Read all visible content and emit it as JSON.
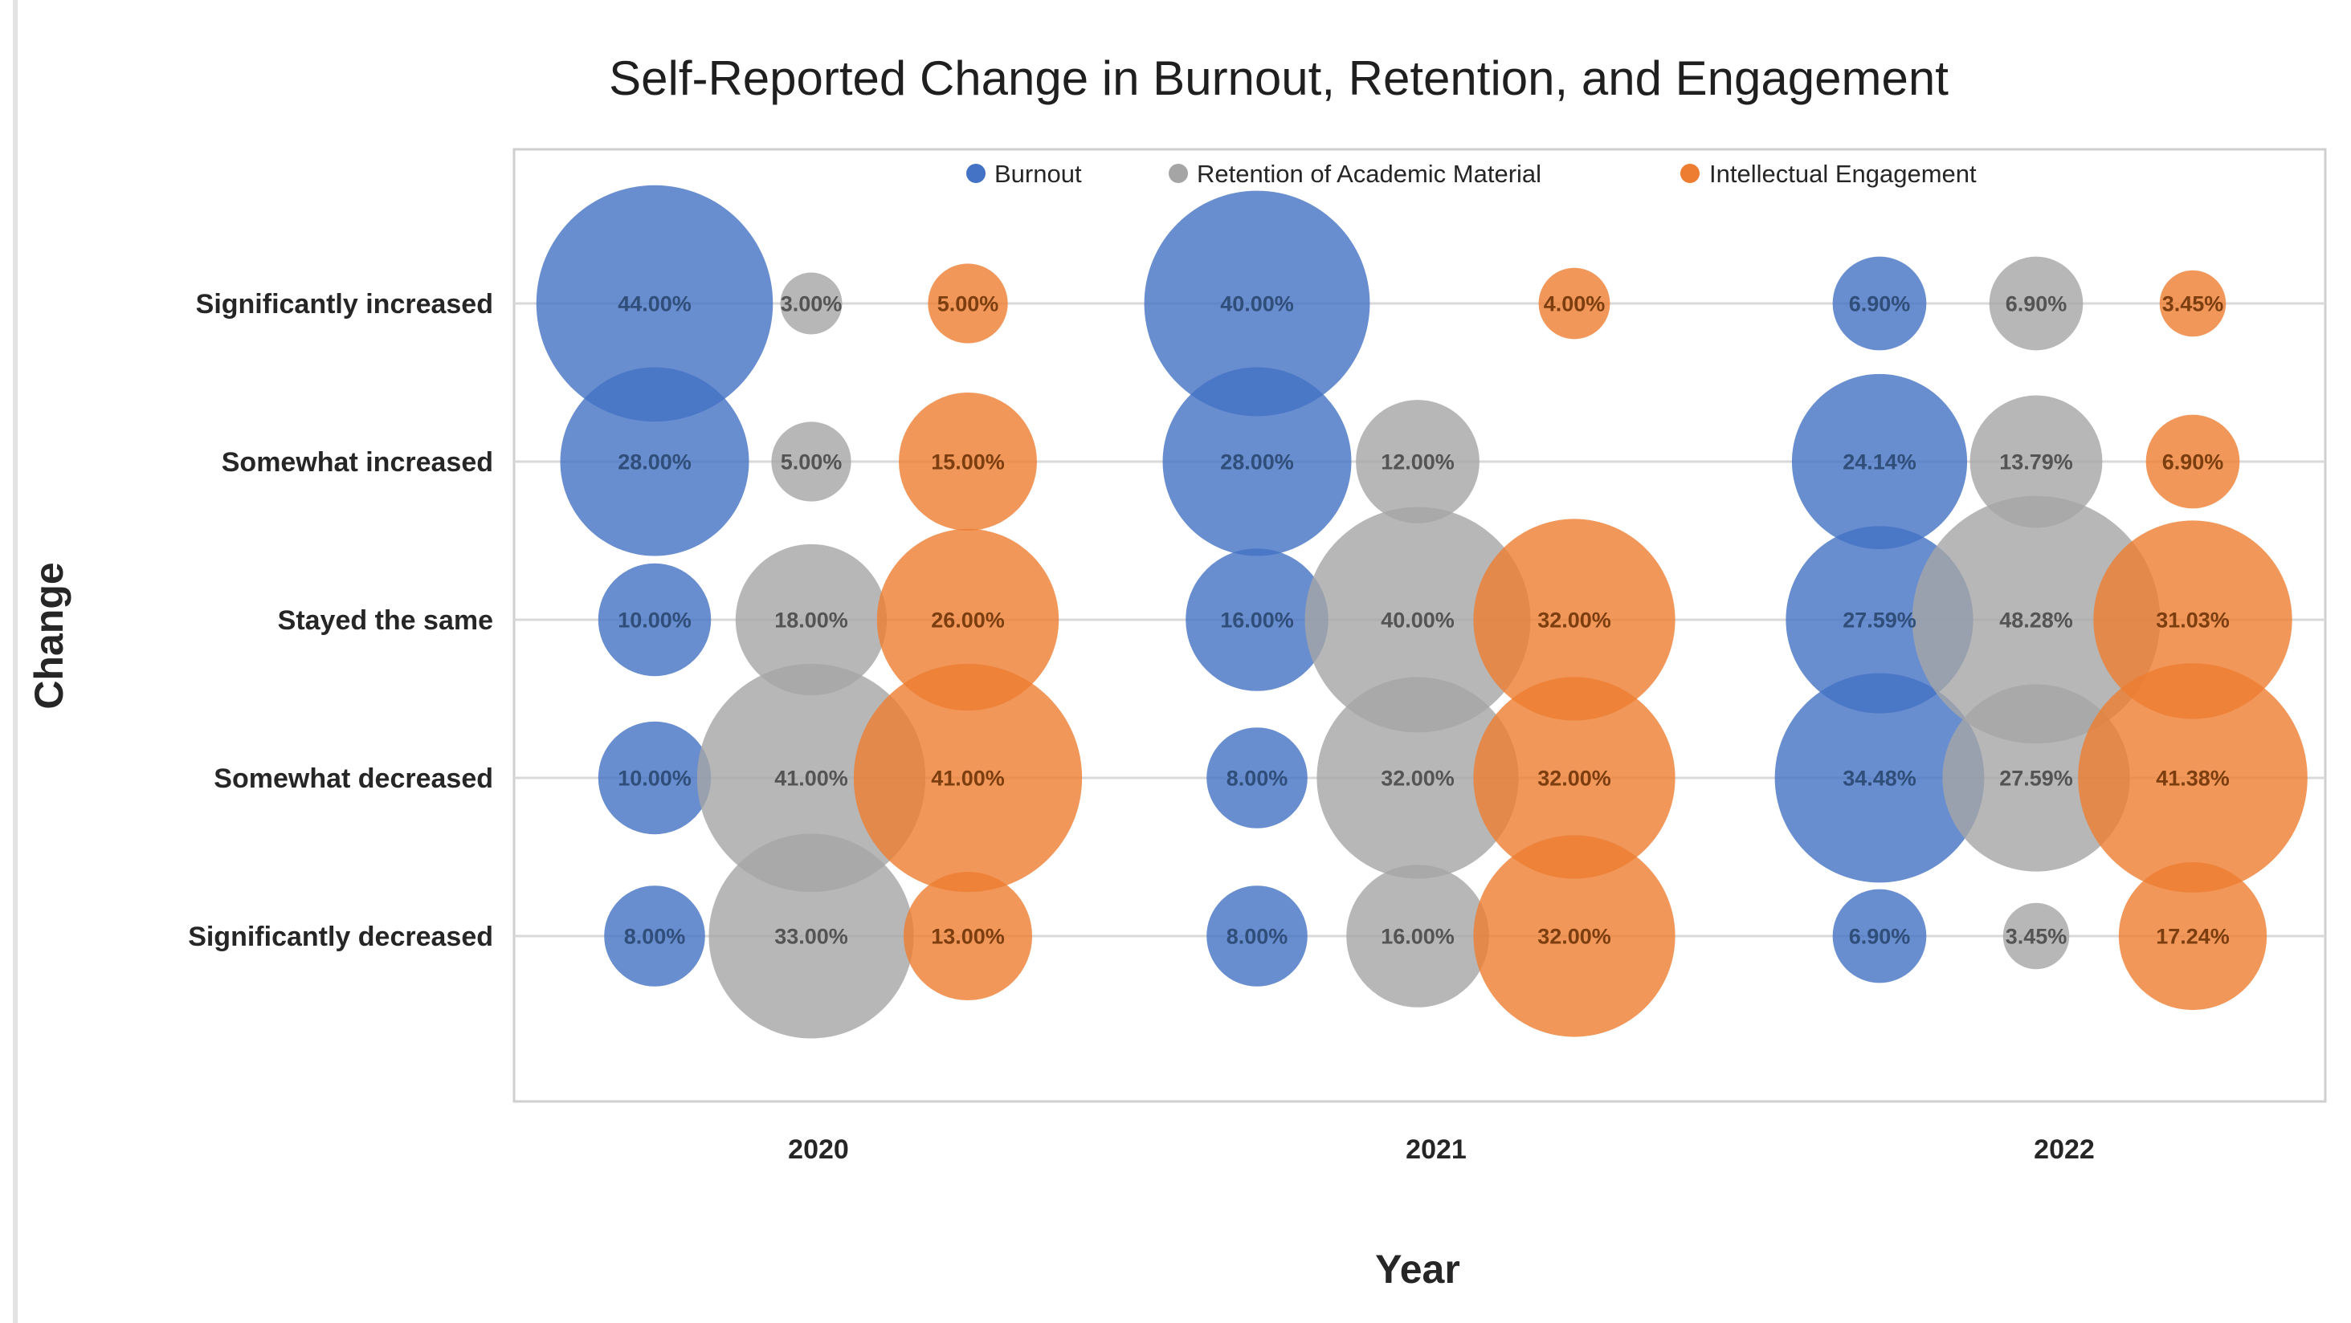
{
  "window": {
    "background": "#ffffff",
    "edge_color": "#e3e3e3"
  },
  "chart_data": {
    "type": "bubble",
    "title": "Self-Reported Change in Burnout, Retention, and Engagement",
    "xlabel": "Year",
    "ylabel": "Change",
    "categories": [
      "Significantly increased",
      "Somewhat increased",
      "Stayed the same",
      "Somewhat decreased",
      "Significantly decreased"
    ],
    "years": [
      "2020",
      "2021",
      "2022"
    ],
    "legend_position": "top-inside",
    "grid": "horizontal-category-lines",
    "value_label_format": "0.00%",
    "bubble_fill_opacity": 0.8,
    "gridline_color": "#d9d9d9",
    "series": [
      {
        "name": "Burnout",
        "color": "#4472C4",
        "label_color": "#2F4E79",
        "values_by_year": [
          [
            44.0,
            28.0,
            10.0,
            10.0,
            8.0
          ],
          [
            40.0,
            28.0,
            16.0,
            8.0,
            8.0
          ],
          [
            6.9,
            24.14,
            27.59,
            34.48,
            6.9
          ]
        ]
      },
      {
        "name": "Retention of Academic Material",
        "color": "#A5A5A5",
        "label_color": "#545454",
        "values_by_year": [
          [
            3.0,
            5.0,
            18.0,
            41.0,
            33.0
          ],
          [
            null,
            12.0,
            40.0,
            32.0,
            16.0
          ],
          [
            6.9,
            13.79,
            48.28,
            27.59,
            3.45
          ]
        ]
      },
      {
        "name": "Intellectual Engagement",
        "color": "#ED7D31",
        "label_color": "#7C3E0F",
        "values_by_year": [
          [
            5.0,
            15.0,
            26.0,
            41.0,
            13.0
          ],
          [
            4.0,
            null,
            32.0,
            32.0,
            32.0
          ],
          [
            3.45,
            6.9,
            31.03,
            41.38,
            17.24
          ]
        ]
      }
    ]
  }
}
